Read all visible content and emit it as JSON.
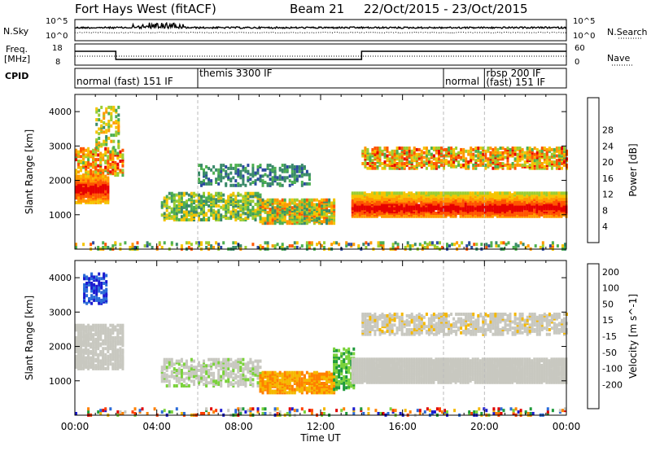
{
  "header": {
    "station": "Fort Hays West (fitACF)",
    "beam": "Beam 21",
    "daterange": "22/Oct/2015 - 23/Oct/2015"
  },
  "labels": {
    "nsky": "N.Sky",
    "freq_line1": "Freq.",
    "freq_line2": "[MHz]",
    "cpid": "CPID",
    "nsearch": "N.Search",
    "nave": "Nave",
    "nsky_ticks": [
      "10^5",
      "10^0"
    ],
    "freq_ticks": [
      "18",
      "8"
    ],
    "nave_ticks": [
      "60",
      "0"
    ]
  },
  "cpid_segments": [
    {
      "label": "normal (fast) 151 IF",
      "start": 0,
      "end": 6
    },
    {
      "label": "themis 3300 IF",
      "start": 6,
      "end": 18
    },
    {
      "label": "normal",
      "start": 18,
      "end": 20
    },
    {
      "label": "rbsp 200 IF",
      "start": 20,
      "end": 24
    },
    {
      "label": "(fast) 151 IF",
      "start": 20,
      "end": 24
    }
  ],
  "chart_data": [
    {
      "type": "heatmap",
      "name": "power",
      "ylabel": "Slant Range [km]",
      "xlim": [
        0,
        24
      ],
      "ylim": [
        0,
        4500
      ],
      "yticks": [
        "1000",
        "2000",
        "3000",
        "4000"
      ],
      "colorbar": {
        "label": "Power [dB]",
        "ticks": [
          "4",
          "8",
          "12",
          "16",
          "20",
          "24",
          "28"
        ],
        "colors": [
          "#0000ff",
          "#2c4aa0",
          "#3a8a6a",
          "#4caf50",
          "#9acd32",
          "#f5c400",
          "#ff9900",
          "#ff5500",
          "#e60000"
        ]
      }
    },
    {
      "type": "heatmap",
      "name": "velocity",
      "ylabel": "Slant Range [km]",
      "xlabel": "Time UT",
      "xlim": [
        0,
        24
      ],
      "ylim": [
        0,
        4500
      ],
      "yticks": [
        "1000",
        "2000",
        "3000",
        "4000"
      ],
      "xticks": [
        "00:00",
        "04:00",
        "08:00",
        "12:00",
        "16:00",
        "20:00",
        "00:00"
      ],
      "colorbar": {
        "label": "Velocity [m s^-1]",
        "ticks": [
          "200",
          "100",
          "50",
          "15",
          "-15",
          "-50",
          "-100",
          "-200"
        ],
        "colors": [
          "#1a1ad0",
          "#2a6ad8",
          "#1e9a3a",
          "#7ad23a",
          "#c8c8c0",
          "#f5b800",
          "#ff8000",
          "#ff4000",
          "#e00000"
        ]
      }
    }
  ]
}
